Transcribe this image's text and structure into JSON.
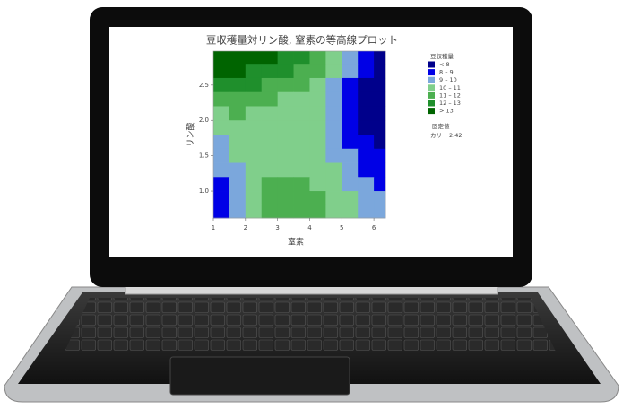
{
  "chart_data": {
    "type": "contour",
    "title": "豆収穫量対リン酸, 窒素の等高線プロット",
    "x_label": "窒素",
    "y_label": "リン酸",
    "xlim": [
      1,
      6.36
    ],
    "ylim": [
      0.62,
      2.98
    ],
    "xticks": [
      1,
      2,
      3,
      4,
      5,
      6
    ],
    "yticks": [
      {
        "value": 1.0,
        "label": "1.0"
      },
      {
        "value": 1.5,
        "label": "1.5"
      },
      {
        "value": 2.0,
        "label": "2.0"
      },
      {
        "value": 2.5,
        "label": "2.5"
      }
    ],
    "x": [
      1.25,
      1.75,
      2.25,
      2.75,
      3.25,
      3.75,
      4.25,
      4.75,
      5.25,
      5.75,
      6.25
    ],
    "y": [
      2.9,
      2.7,
      2.5,
      2.3,
      2.1,
      1.9,
      1.7,
      1.5,
      1.3,
      1.1,
      0.9,
      0.7
    ],
    "z": [
      [
        13.5,
        13.4,
        13.3,
        13.1,
        12.8,
        12.3,
        11.6,
        10.8,
        9.5,
        8.5,
        7.8
      ],
      [
        13.1,
        13.0,
        12.8,
        12.5,
        12.1,
        11.6,
        11.0,
        10.2,
        9.0,
        8.0,
        7.5
      ],
      [
        12.3,
        12.2,
        12.0,
        11.7,
        11.4,
        11.0,
        10.6,
        9.8,
        8.8,
        7.8,
        7.3
      ],
      [
        11.6,
        11.5,
        11.3,
        11.1,
        10.9,
        10.6,
        10.3,
        9.6,
        8.7,
        7.8,
        7.3
      ],
      [
        10.9,
        11.0,
        10.9,
        10.8,
        10.6,
        10.4,
        10.1,
        9.5,
        8.7,
        7.8,
        7.4
      ],
      [
        10.3,
        10.6,
        10.6,
        10.6,
        10.5,
        10.3,
        10.0,
        9.5,
        8.8,
        7.9,
        7.5
      ],
      [
        9.9,
        10.3,
        10.5,
        10.6,
        10.5,
        10.3,
        10.0,
        9.6,
        8.9,
        8.1,
        7.7
      ],
      [
        9.5,
        10.1,
        10.5,
        10.6,
        10.6,
        10.4,
        10.2,
        9.8,
        9.1,
        8.4,
        8.0
      ],
      [
        9.2,
        9.9,
        10.5,
        10.8,
        10.8,
        10.7,
        10.4,
        10.0,
        9.4,
        8.7,
        8.3
      ],
      [
        8.8,
        9.8,
        10.6,
        11.0,
        11.2,
        11.1,
        10.8,
        10.3,
        9.7,
        9.1,
        8.7
      ],
      [
        8.5,
        9.7,
        10.7,
        11.3,
        11.6,
        11.5,
        11.2,
        10.6,
        10.0,
        9.4,
        9.0
      ],
      [
        8.6,
        9.8,
        10.8,
        11.5,
        11.8,
        11.8,
        11.4,
        10.8,
        10.2,
        9.6,
        9.2
      ]
    ],
    "levels": [
      8,
      9,
      10,
      11,
      12,
      13
    ],
    "colors": [
      "#00008b",
      "#0000e6",
      "#7ba7dc",
      "#80cf8b",
      "#4caf50",
      "#1f8f2c",
      "#006400"
    ],
    "legend_title": "豆収穫量",
    "legend_labels": [
      "< 8",
      "8 – 9",
      "9 – 10",
      "10 – 11",
      "11 – 12",
      "12 – 13",
      "> 13"
    ],
    "held_title": "固定値",
    "held_name": "カリ",
    "held_value": "2.42"
  }
}
